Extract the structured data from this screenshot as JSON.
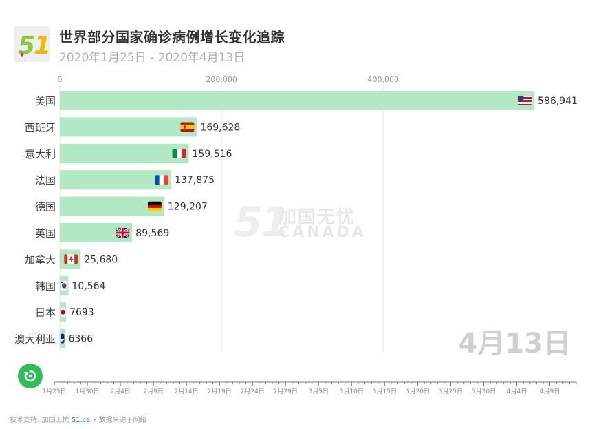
{
  "header": {
    "title": "世界部分国家确诊病例增长变化追踪",
    "subtitle": "2020年1月25日 - 2020年4月13日"
  },
  "watermark": {
    "logo": "51",
    "name_cn": "加国无忧",
    "name_en": "CANADA"
  },
  "current_date": "4月13日",
  "colors": {
    "bar": "#b3e8c4",
    "accent": "#2ebd59",
    "grid": "#e6e6e6",
    "axis_text": "#999999"
  },
  "chart_data": {
    "type": "bar",
    "orientation": "horizontal",
    "title": "世界部分国家确诊病例增长变化追踪",
    "xlim": [
      0,
      600000
    ],
    "x_ticks": [
      0,
      200000,
      400000
    ],
    "x_tick_labels": [
      "0",
      "200,000",
      "400,000"
    ],
    "categories": [
      "美国",
      "西班牙",
      "意大利",
      "法国",
      "德国",
      "英国",
      "加拿大",
      "韩国",
      "日本",
      "澳大利亚"
    ],
    "values": [
      586941,
      169628,
      159516,
      137875,
      129207,
      89569,
      25680,
      10564,
      7693,
      6366
    ],
    "value_labels": [
      "586,941",
      "169,628",
      "159,516",
      "137,875",
      "129,207",
      "89,569",
      "25,680",
      "10,564",
      "7693",
      "6366"
    ],
    "flags": [
      "us-flag-icon",
      "es-flag-icon",
      "it-flag-icon",
      "fr-flag-icon",
      "de-flag-icon",
      "gb-flag-icon",
      "ca-flag-icon",
      "kr-flag-icon",
      "jp-flag-icon",
      "au-flag-icon"
    ]
  },
  "timeline": {
    "ticks": [
      "1月25日",
      "1月30日",
      "2月4日",
      "2月9日",
      "2月14日",
      "2月19日",
      "2月24日",
      "2月29日",
      "3月5日",
      "3月10日",
      "3月15日",
      "3月20日",
      "3月25日",
      "3月30日",
      "4月4日",
      "4月9日"
    ],
    "day_count": 80,
    "current_day_index": 79
  },
  "footer": {
    "prefix": "技术支持: 加国无忧",
    "link": "51.ca",
    "suffix": "• 数据来源于网络"
  }
}
